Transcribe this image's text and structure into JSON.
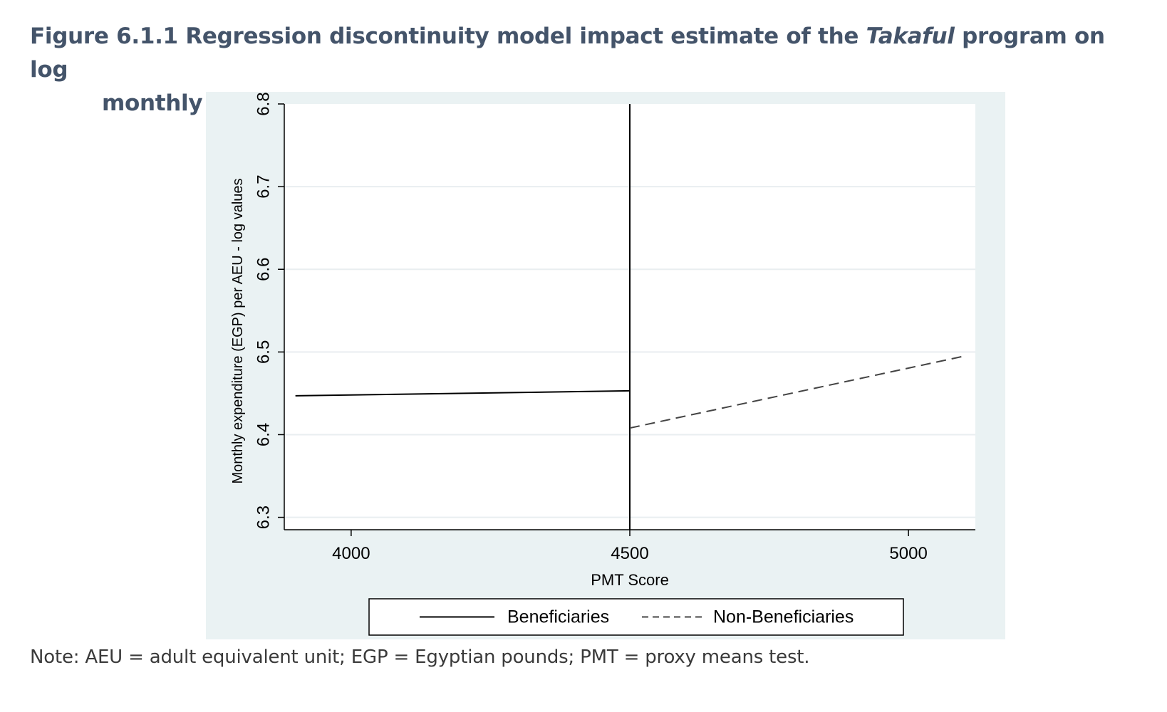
{
  "caption": {
    "prefix": "Figure 6.1.1 Regression discontinuity model impact estimate of the ",
    "italic": "Takaful",
    "suffix": " program on log",
    "line2": "monthly expenditure per adult equivalent unit"
  },
  "note": "Note: AEU = adult equivalent unit; EGP = Egyptian pounds; PMT = proxy means test.",
  "colors": {
    "panel_background": "#eaf2f3",
    "plot_background": "#ffffff",
    "gridline": "#e9eef0",
    "axis": "#000000",
    "beneficiaries_line": "#000000",
    "non_beneficiaries_line": "#444444",
    "caption_text": "#44546a"
  },
  "chart_data": {
    "type": "line",
    "title": "",
    "xlabel": "PMT Score",
    "ylabel": "Monthly expenditure (EGP) per AEU - log values",
    "xlim": [
      3880,
      5120
    ],
    "ylim": [
      6.285,
      6.8
    ],
    "x_ticks": [
      4000,
      4500,
      5000
    ],
    "y_ticks": [
      6.3,
      6.4,
      6.5,
      6.6,
      6.7,
      6.8
    ],
    "x_tick_labels": [
      "4000",
      "4500",
      "5000"
    ],
    "y_tick_labels": [
      "6.3",
      "6.4",
      "6.5",
      "6.6",
      "6.7",
      "6.8"
    ],
    "grid": true,
    "cutoff": {
      "x": 4500,
      "line_style": "solid"
    },
    "series": [
      {
        "name": "Beneficiaries",
        "line_style": "solid",
        "x": [
          3900,
          4500
        ],
        "y": [
          6.447,
          6.453
        ]
      },
      {
        "name": "Non-Beneficiaries",
        "line_style": "dashed",
        "x": [
          4500,
          5100
        ],
        "y": [
          6.408,
          6.495
        ]
      }
    ],
    "legend": {
      "position": "bottom",
      "entries": [
        "Beneficiaries",
        "Non-Beneficiaries"
      ]
    }
  }
}
